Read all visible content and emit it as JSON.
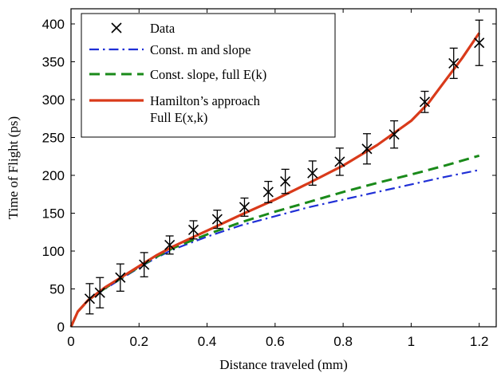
{
  "chart_data": {
    "type": "line",
    "title": "",
    "xlabel": "Distance traveled (mm)",
    "ylabel": "Time of Flight (ps)",
    "xlim": [
      0,
      1.25
    ],
    "ylim": [
      0,
      420
    ],
    "xticks": [
      0,
      0.2,
      0.4,
      0.6,
      0.8,
      1,
      1.2
    ],
    "xtick_labels": [
      "0",
      "0.2",
      "0.4",
      "0.6",
      "0.8",
      "1",
      "1.2"
    ],
    "yticks": [
      0,
      50,
      100,
      150,
      200,
      250,
      300,
      350,
      400
    ],
    "ytick_labels": [
      "0",
      "50",
      "100",
      "150",
      "200",
      "250",
      "300",
      "350",
      "400"
    ],
    "grid": false,
    "legend_position": "top-left",
    "data_series": {
      "name": "Data",
      "marker": "x",
      "color": "#000000",
      "points": [
        {
          "x": 0.055,
          "y": 37,
          "err": 20
        },
        {
          "x": 0.085,
          "y": 45,
          "err": 20
        },
        {
          "x": 0.145,
          "y": 65,
          "err": 18
        },
        {
          "x": 0.215,
          "y": 82,
          "err": 16
        },
        {
          "x": 0.29,
          "y": 108,
          "err": 12
        },
        {
          "x": 0.36,
          "y": 128,
          "err": 12
        },
        {
          "x": 0.43,
          "y": 142,
          "err": 12
        },
        {
          "x": 0.51,
          "y": 158,
          "err": 12
        },
        {
          "x": 0.58,
          "y": 178,
          "err": 14
        },
        {
          "x": 0.63,
          "y": 192,
          "err": 16
        },
        {
          "x": 0.71,
          "y": 203,
          "err": 16
        },
        {
          "x": 0.79,
          "y": 218,
          "err": 18
        },
        {
          "x": 0.87,
          "y": 235,
          "err": 20
        },
        {
          "x": 0.95,
          "y": 254,
          "err": 18
        },
        {
          "x": 1.04,
          "y": 297,
          "err": 14
        },
        {
          "x": 1.125,
          "y": 348,
          "err": 20
        },
        {
          "x": 1.2,
          "y": 375,
          "err": 30
        }
      ]
    },
    "series": [
      {
        "name": "Const. m and slope",
        "style": "dashdot",
        "color": "#1f2fd6",
        "x": [
          0,
          0.02,
          0.05,
          0.1,
          0.15,
          0.2,
          0.25,
          0.3,
          0.4,
          0.5,
          0.6,
          0.7,
          0.8,
          0.9,
          1.0,
          1.1,
          1.2
        ],
        "y": [
          0,
          20,
          35,
          50,
          64,
          78,
          91,
          102,
          119,
          134,
          146,
          158,
          168,
          178,
          188,
          198,
          207
        ]
      },
      {
        "name": "Const. slope, full E(k)",
        "style": "dashed",
        "color": "#1a8a1a",
        "x": [
          0,
          0.02,
          0.05,
          0.1,
          0.15,
          0.2,
          0.25,
          0.3,
          0.4,
          0.5,
          0.6,
          0.7,
          0.8,
          0.9,
          1.0,
          1.1,
          1.2
        ],
        "y": [
          0,
          20,
          35,
          51,
          65,
          79,
          92,
          104,
          122,
          138,
          152,
          165,
          178,
          190,
          201,
          213,
          226
        ]
      },
      {
        "name": "Hamilton's approach\nFull E(x,k)",
        "style": "solid",
        "color": "#d93a1a",
        "x": [
          0,
          0.02,
          0.05,
          0.1,
          0.15,
          0.2,
          0.25,
          0.3,
          0.4,
          0.5,
          0.6,
          0.7,
          0.8,
          0.9,
          1.0,
          1.05,
          1.1,
          1.15,
          1.2
        ],
        "y": [
          0,
          20,
          35,
          52,
          66,
          80,
          94,
          106,
          127,
          148,
          168,
          190,
          213,
          240,
          272,
          295,
          325,
          355,
          388
        ]
      }
    ],
    "legend": [
      {
        "label": "Data",
        "kind": "marker"
      },
      {
        "label": "Const. m and slope",
        "kind": "dashdot"
      },
      {
        "label": "Const. slope, full E(k)",
        "kind": "dashed"
      },
      {
        "label": "Hamilton’s approach",
        "label2": "Full E(x,k)",
        "kind": "solid"
      }
    ]
  }
}
